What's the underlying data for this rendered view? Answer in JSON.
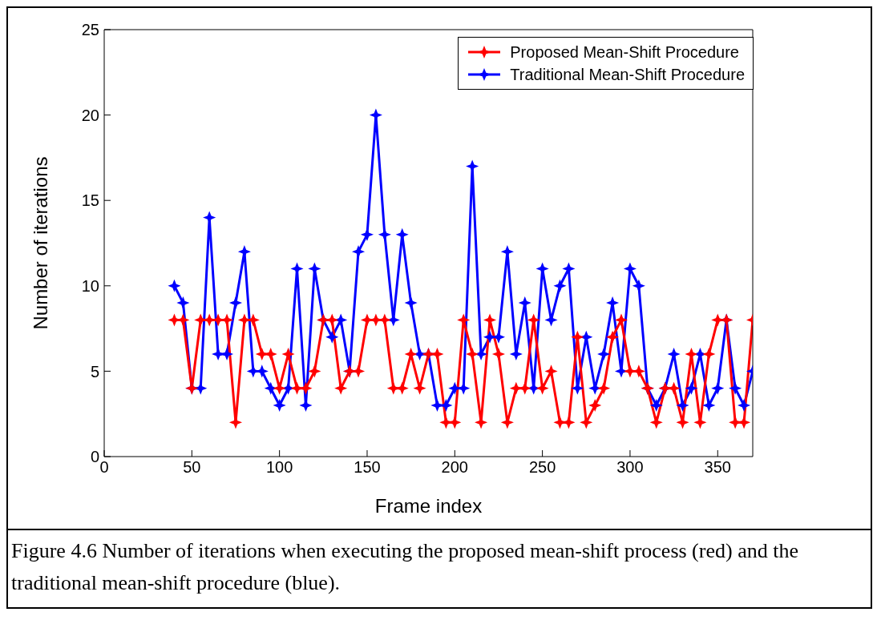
{
  "chart_data": {
    "type": "line",
    "xlabel": "Frame index",
    "ylabel": "Number of iterations",
    "x": [
      40,
      45,
      50,
      55,
      60,
      65,
      70,
      75,
      80,
      85,
      90,
      95,
      100,
      105,
      110,
      115,
      120,
      125,
      130,
      135,
      140,
      145,
      150,
      155,
      160,
      165,
      170,
      175,
      180,
      185,
      190,
      195,
      200,
      205,
      210,
      215,
      220,
      225,
      230,
      235,
      240,
      245,
      250,
      255,
      260,
      265,
      270,
      275,
      280,
      285,
      290,
      295,
      300,
      305,
      310,
      315,
      320,
      325,
      330,
      335,
      340,
      345,
      350,
      355,
      360,
      365,
      370
    ],
    "series": [
      {
        "name": "Proposed Mean-Shift Procedure",
        "color": "#ff0000",
        "values": [
          8,
          8,
          4,
          8,
          8,
          8,
          8,
          2,
          8,
          8,
          6,
          6,
          4,
          6,
          4,
          4,
          5,
          8,
          8,
          4,
          5,
          5,
          8,
          8,
          8,
          4,
          4,
          6,
          4,
          6,
          6,
          2,
          2,
          8,
          6,
          2,
          8,
          6,
          2,
          4,
          4,
          8,
          4,
          5,
          2,
          2,
          7,
          2,
          3,
          4,
          7,
          8,
          5,
          5,
          4,
          2,
          4,
          4,
          2,
          6,
          2,
          6,
          8,
          8,
          2,
          2,
          8
        ]
      },
      {
        "name": "Traditional Mean-Shift Procedure",
        "color": "#0000ff",
        "values": [
          10,
          9,
          4,
          4,
          14,
          6,
          6,
          9,
          12,
          5,
          5,
          4,
          3,
          4,
          11,
          3,
          11,
          8,
          7,
          8,
          5,
          12,
          13,
          20,
          13,
          8,
          13,
          9,
          6,
          6,
          3,
          3,
          4,
          4,
          17,
          6,
          7,
          7,
          12,
          6,
          9,
          4,
          11,
          8,
          10,
          11,
          4,
          7,
          4,
          6,
          9,
          5,
          11,
          10,
          4,
          3,
          4,
          6,
          3,
          4,
          6,
          3,
          4,
          8,
          4,
          3,
          5
        ]
      }
    ],
    "xlim": [
      0,
      370
    ],
    "xticks": [
      0,
      50,
      100,
      150,
      200,
      250,
      300,
      350
    ],
    "ylim": [
      0,
      25
    ],
    "yticks": [
      0,
      5,
      10,
      15,
      20,
      25
    ],
    "marker": "star",
    "line_style": "solid",
    "legend": "top right",
    "annotations": [
      "Figure 4.6 Number of iterations when executing the proposed mean-shift process (red) and the traditional mean-shift procedure (blue)."
    ]
  }
}
